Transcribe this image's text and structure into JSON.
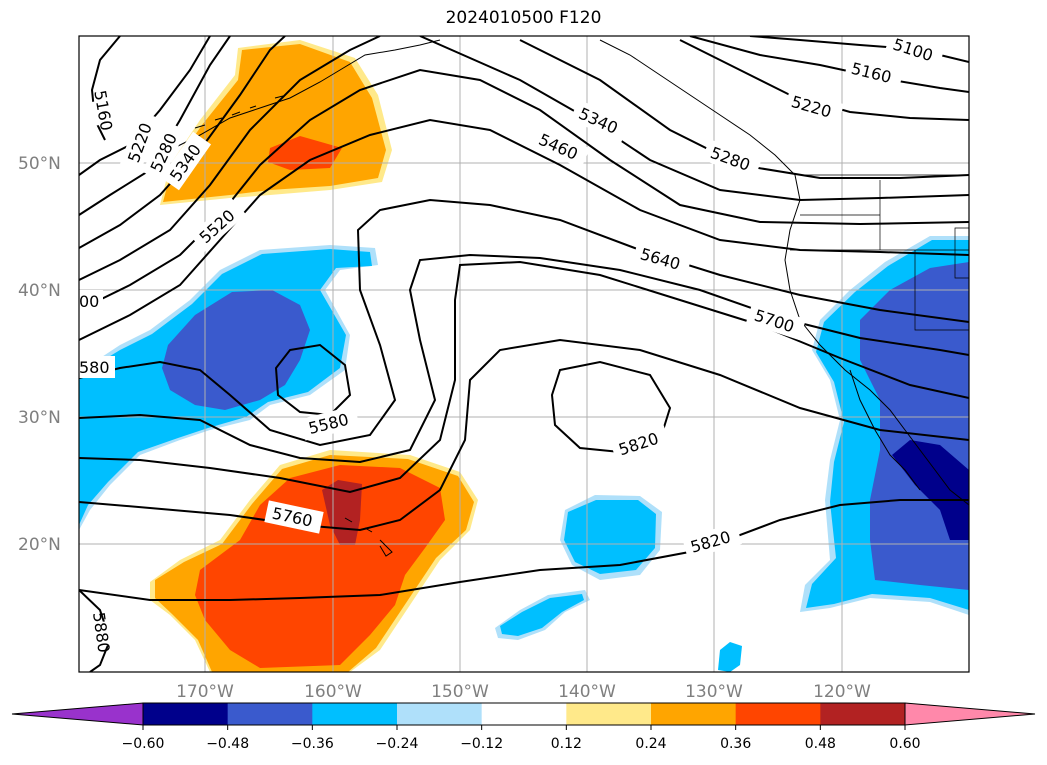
{
  "title": "2024010500 F120",
  "lat_labels": [
    "50°N",
    "40°N",
    "30°N",
    "20°N"
  ],
  "lon_labels": [
    "170°W",
    "160°W",
    "150°W",
    "140°W",
    "130°W",
    "120°W"
  ],
  "contour_labels": [
    "5100",
    "5160",
    "5220",
    "5160",
    "5220",
    "5280",
    "5340",
    "5340",
    "5460",
    "5280",
    "5520",
    "5640",
    "5700",
    "5580",
    "5820",
    "5760",
    "5820",
    "5880",
    "00",
    "580"
  ],
  "colorbar": {
    "ticks": [
      "−0.60",
      "−0.48",
      "−0.36",
      "−0.24",
      "−0.12",
      "0.12",
      "0.24",
      "0.36",
      "0.48",
      "0.60"
    ],
    "colors": [
      "#9932cc",
      "#00008b",
      "#3a5acd",
      "#00bfff",
      "#afe0fa",
      "#ffffff",
      "#ffe98a",
      "#ffa500",
      "#ff4500",
      "#b22222",
      "#ff88aa"
    ]
  },
  "shading_colors": {
    "strong_negative": "#00008b",
    "negative_mid": "#3a5acd",
    "negative_light": "#00bfff",
    "negative_faint": "#afe0fa",
    "positive_faint": "#ffe98a",
    "positive_light": "#ffa500",
    "positive_mid": "#ff4500",
    "positive_strong": "#b22222"
  }
}
